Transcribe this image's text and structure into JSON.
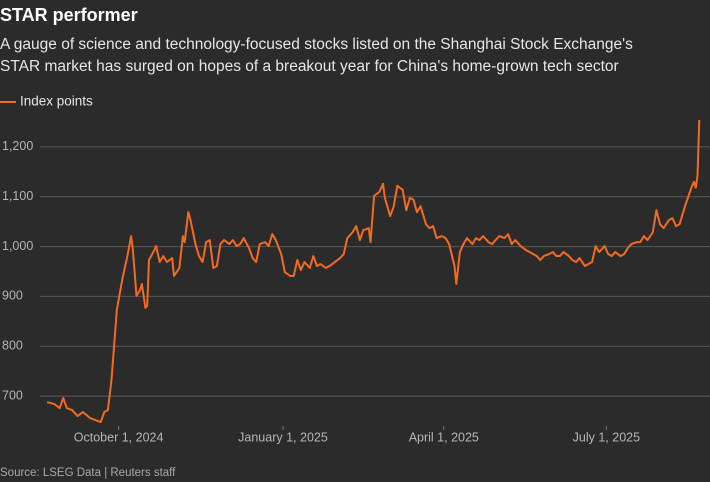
{
  "chart_data": {
    "type": "line",
    "title": "STAR performer",
    "subtitle": [
      "A gauge of science and technology-focused stocks listed on the Shanghai Stock Exchange's",
      "STAR market has surged on hopes of a breakout year for China's home-grown tech sector"
    ],
    "source": "Source: LSEG Data | Reuters staff",
    "x": [
      "2024-08-22",
      "2024-08-26",
      "2024-08-29",
      "2024-08-31",
      "2024-09-02",
      "2024-09-05",
      "2024-09-08",
      "2024-09-11",
      "2024-09-15",
      "2024-09-18",
      "2024-09-21",
      "2024-09-23",
      "2024-09-25",
      "2024-09-27",
      "2024-09-30",
      "2024-10-03",
      "2024-10-06",
      "2024-10-08",
      "2024-10-09",
      "2024-10-11",
      "2024-10-13",
      "2024-10-14",
      "2024-10-16",
      "2024-10-17",
      "2024-10-18",
      "2024-10-21",
      "2024-10-22",
      "2024-10-24",
      "2024-10-26",
      "2024-10-28",
      "2024-10-31",
      "2024-11-01",
      "2024-11-04",
      "2024-11-06",
      "2024-11-07",
      "2024-11-09",
      "2024-11-10",
      "2024-11-13",
      "2024-11-15",
      "2024-11-17",
      "2024-11-19",
      "2024-11-21",
      "2024-11-23",
      "2024-11-25",
      "2024-11-27",
      "2024-11-29",
      "2024-12-02",
      "2024-12-04",
      "2024-12-06",
      "2024-12-08",
      "2024-12-10",
      "2024-12-13",
      "2024-12-15",
      "2024-12-17",
      "2024-12-19",
      "2024-12-22",
      "2024-12-24",
      "2024-12-26",
      "2024-12-28",
      "2024-12-31",
      "2025-01-02",
      "2025-01-05",
      "2025-01-07",
      "2025-01-09",
      "2025-01-11",
      "2025-01-13",
      "2025-01-16",
      "2025-01-18",
      "2025-01-20",
      "2025-01-22",
      "2025-01-25",
      "2025-01-27",
      "2025-01-30",
      "2025-02-02",
      "2025-02-04",
      "2025-02-06",
      "2025-02-09",
      "2025-02-11",
      "2025-02-13",
      "2025-02-15",
      "2025-02-18",
      "2025-02-19",
      "2025-02-21",
      "2025-02-24",
      "2025-02-26",
      "2025-02-27",
      "2025-03-02",
      "2025-03-04",
      "2025-03-06",
      "2025-03-09",
      "2025-03-11",
      "2025-03-13",
      "2025-03-15",
      "2025-03-17",
      "2025-03-19",
      "2025-03-22",
      "2025-03-24",
      "2025-03-26",
      "2025-03-28",
      "2025-03-31",
      "2025-04-02",
      "2025-04-04",
      "2025-04-07",
      "2025-04-08",
      "2025-04-10",
      "2025-04-12",
      "2025-04-14",
      "2025-04-17",
      "2025-04-19",
      "2025-04-21",
      "2025-04-23",
      "2025-04-26",
      "2025-04-28",
      "2025-04-30",
      "2025-05-02",
      "2025-05-05",
      "2025-05-07",
      "2025-05-09",
      "2025-05-11",
      "2025-05-14",
      "2025-05-17",
      "2025-05-19",
      "2025-05-23",
      "2025-05-25",
      "2025-05-27",
      "2025-05-30",
      "2025-06-01",
      "2025-06-03",
      "2025-06-05",
      "2025-06-07",
      "2025-06-10",
      "2025-06-12",
      "2025-06-14",
      "2025-06-16",
      "2025-06-19",
      "2025-06-21",
      "2025-06-23",
      "2025-06-25",
      "2025-06-27",
      "2025-06-30",
      "2025-07-02",
      "2025-07-04",
      "2025-07-06",
      "2025-07-09",
      "2025-07-11",
      "2025-07-13",
      "2025-07-15",
      "2025-07-18",
      "2025-07-20",
      "2025-07-22",
      "2025-07-24",
      "2025-07-27",
      "2025-07-29",
      "2025-07-31",
      "2025-08-02",
      "2025-08-05",
      "2025-08-07",
      "2025-08-09",
      "2025-08-11",
      "2025-08-14",
      "2025-08-16",
      "2025-08-18",
      "2025-08-19",
      "2025-08-20",
      "2025-08-21",
      "2025-08-22"
    ],
    "series": [
      {
        "name": "Index points",
        "color": "#f26b21",
        "values": [
          688,
          684,
          676,
          696,
          676,
          672,
          660,
          668,
          656,
          652,
          648,
          668,
          672,
          732,
          873,
          933,
          983,
          1021,
          993,
          901,
          913,
          925,
          877,
          881,
          973,
          993,
          1001,
          969,
          981,
          969,
          977,
          941,
          957,
          1021,
          1009,
          1069,
          1057,
          1005,
          981,
          969,
          1009,
          1013,
          957,
          961,
          1005,
          1013,
          1005,
          1013,
          1001,
          1005,
          1017,
          997,
          977,
          969,
          1005,
          1009,
          1001,
          1025,
          1013,
          985,
          949,
          941,
          941,
          973,
          953,
          969,
          957,
          981,
          961,
          965,
          957,
          961,
          969,
          977,
          985,
          1017,
          1029,
          1041,
          1013,
          1033,
          1037,
          1009,
          1102,
          1110,
          1126,
          1098,
          1061,
          1081,
          1122,
          1114,
          1073,
          1098,
          1094,
          1069,
          1081,
          1045,
          1037,
          1041,
          1017,
          1021,
          1017,
          1005,
          961,
          925,
          989,
          1005,
          1017,
          1005,
          1017,
          1013,
          1021,
          1009,
          1005,
          1013,
          1021,
          1017,
          1025,
          1005,
          1013,
          1001,
          993,
          989,
          981,
          973,
          981,
          985,
          989,
          981,
          981,
          989,
          981,
          973,
          969,
          977,
          961,
          965,
          969,
          1001,
          989,
          1001,
          985,
          981,
          989,
          981,
          985,
          997,
          1005,
          1009,
          1009,
          1021,
          1013,
          1029,
          1073,
          1045,
          1037,
          1053,
          1057,
          1041,
          1045,
          1081,
          1102,
          1122,
          1130,
          1118,
          1142,
          1254
        ]
      }
    ],
    "xlim": [
      "2024-08-18",
      "2025-08-28"
    ],
    "xticks": [
      {
        "value": "2024-10-01",
        "label": "October 1, 2024"
      },
      {
        "value": "2025-01-01",
        "label": "January 1, 2025"
      },
      {
        "value": "2025-04-01",
        "label": "April 1, 2025"
      },
      {
        "value": "2025-07-01",
        "label": "July 1, 2025"
      }
    ],
    "ylim": [
      640,
      1260
    ],
    "yticks": [
      700,
      800,
      900,
      {
        "value": 1000,
        "label": "1,000"
      },
      {
        "value": 1100,
        "label": "1,100"
      },
      {
        "value": 1200,
        "label": "1,200"
      }
    ],
    "grid": true
  }
}
